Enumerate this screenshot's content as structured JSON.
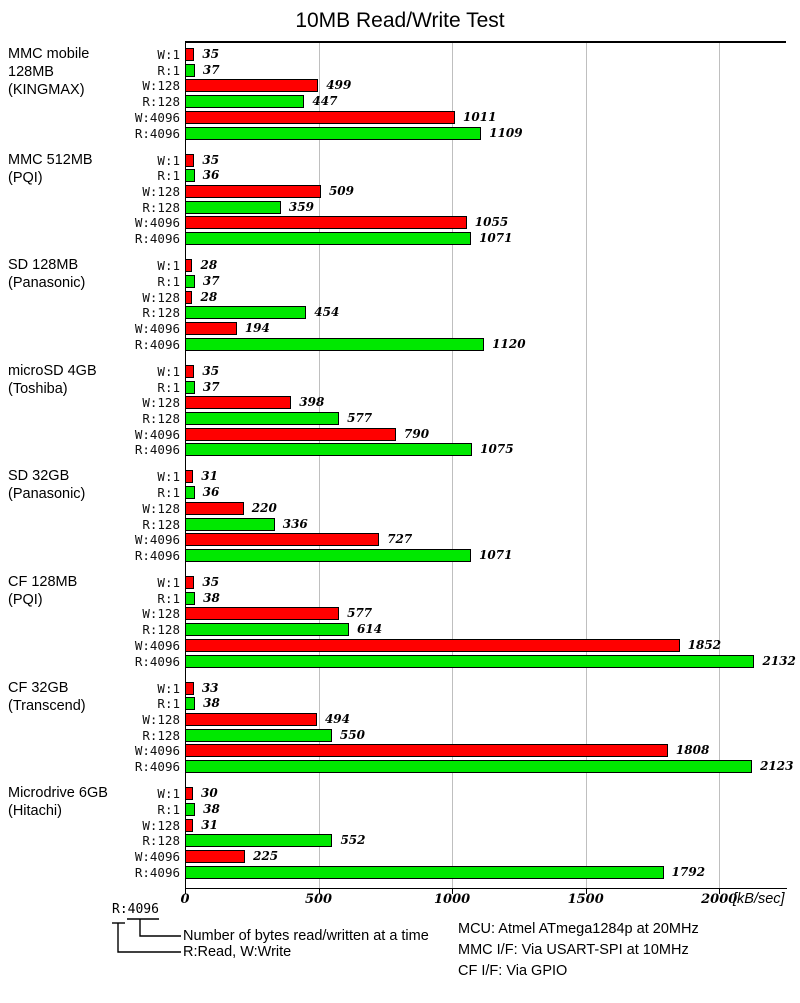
{
  "chart_data": {
    "type": "bar",
    "title": "10MB Read/Write Test",
    "xlabel": "[kB/sec]",
    "x_ticks": [
      0,
      500,
      1000,
      1500,
      2000
    ],
    "xlim": [
      0,
      2250
    ],
    "grid": true,
    "row_labels": [
      "W:1",
      "R:1",
      "W:128",
      "R:128",
      "W:4096",
      "R:4096"
    ],
    "colors": {
      "write": "#ff0000",
      "read": "#00e800",
      "gridline": "#bfbfbf"
    },
    "groups": [
      {
        "name_lines": [
          "MMC mobile",
          "128MB",
          "(KINGMAX)"
        ],
        "values": [
          35,
          37,
          499,
          447,
          1011,
          1109
        ]
      },
      {
        "name_lines": [
          "MMC 512MB",
          "(PQI)"
        ],
        "values": [
          35,
          36,
          509,
          359,
          1055,
          1071
        ]
      },
      {
        "name_lines": [
          "SD 128MB",
          "(Panasonic)"
        ],
        "values": [
          28,
          37,
          28,
          454,
          194,
          1120
        ]
      },
      {
        "name_lines": [
          "microSD 4GB",
          "(Toshiba)"
        ],
        "values": [
          35,
          37,
          398,
          577,
          790,
          1075
        ]
      },
      {
        "name_lines": [
          "SD 32GB",
          "(Panasonic)"
        ],
        "values": [
          31,
          36,
          220,
          336,
          727,
          1071
        ]
      },
      {
        "name_lines": [
          "CF 128MB",
          "(PQI)"
        ],
        "values": [
          35,
          38,
          577,
          614,
          1852,
          2132
        ]
      },
      {
        "name_lines": [
          "CF 32GB",
          "(Transcend)"
        ],
        "values": [
          33,
          38,
          494,
          550,
          1808,
          2123
        ]
      },
      {
        "name_lines": [
          "Microdrive 6GB",
          "(Hitachi)"
        ],
        "values": [
          30,
          38,
          31,
          552,
          225,
          1792
        ]
      }
    ]
  },
  "legend": {
    "sample": "R:4096",
    "bytes_label": "Number of bytes read/written at a time",
    "rw_label": "R:Read, W:Write"
  },
  "info": {
    "lines": [
      "MCU: Atmel ATmega1284p at 20MHz",
      "MMC I/F: Via USART-SPI at 10MHz",
      "CF I/F: Via GPIO"
    ]
  }
}
